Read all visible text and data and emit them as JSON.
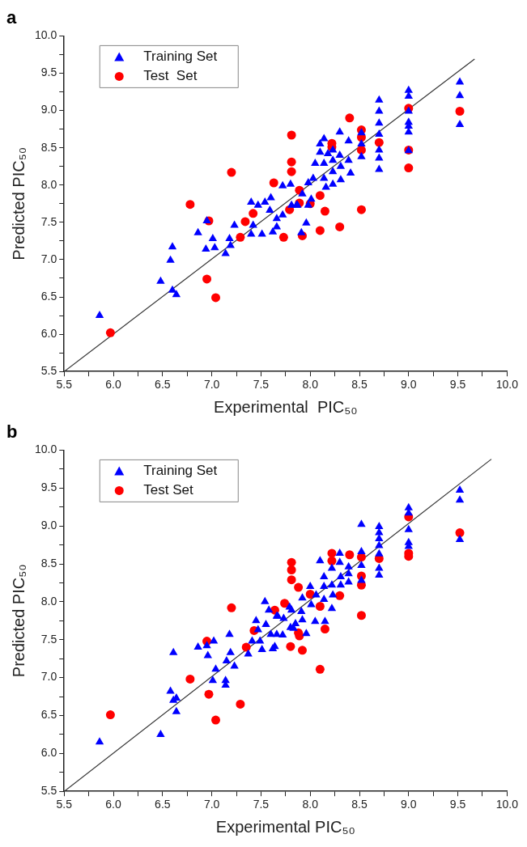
{
  "chart_data": [
    {
      "type": "scatter",
      "title": "a",
      "xlabel": "Experimental  PIC₅₀",
      "ylabel": "Predicted PIC₅₀",
      "legend": "top left",
      "grid": false,
      "xlim": [
        5.5,
        10.0
      ],
      "ylim": [
        5.5,
        10.0
      ],
      "xticks": [
        {
          "value": 5.5,
          "label": "5.5"
        },
        {
          "value": 5.75,
          "label": null
        },
        {
          "value": 6,
          "label": "6.0"
        },
        {
          "value": 6.25,
          "label": null
        },
        {
          "value": 6.5,
          "label": "6.5"
        },
        {
          "value": 6.75,
          "label": null
        },
        {
          "value": 7,
          "label": "7.0"
        },
        {
          "value": 7.25,
          "label": null
        },
        {
          "value": 7.5,
          "label": "7.5"
        },
        {
          "value": 7.75,
          "label": null
        },
        {
          "value": 8,
          "label": "8.0"
        },
        {
          "value": 8.25,
          "label": null
        },
        {
          "value": 8.5,
          "label": "8.5"
        },
        {
          "value": 8.75,
          "label": null
        },
        {
          "value": 9,
          "label": "9.0"
        },
        {
          "value": 9.25,
          "label": null
        },
        {
          "value": 9.5,
          "label": "9.5"
        },
        {
          "value": 9.75,
          "label": null
        },
        {
          "value": 10,
          "label": "10.0"
        }
      ],
      "yticks": [
        {
          "value": 5.5,
          "label": "5.5"
        },
        {
          "value": 5.75,
          "label": null
        },
        {
          "value": 6,
          "label": "6.0"
        },
        {
          "value": 6.25,
          "label": null
        },
        {
          "value": 6.5,
          "label": "6.5"
        },
        {
          "value": 6.75,
          "label": null
        },
        {
          "value": 7,
          "label": "7.0"
        },
        {
          "value": 7.25,
          "label": null
        },
        {
          "value": 7.5,
          "label": "7.5"
        },
        {
          "value": 7.75,
          "label": null
        },
        {
          "value": 8,
          "label": "8.0"
        },
        {
          "value": 8.25,
          "label": null
        },
        {
          "value": 8.5,
          "label": "8.5"
        },
        {
          "value": 8.75,
          "label": null
        },
        {
          "value": 9,
          "label": "9.0"
        },
        {
          "value": 9.25,
          "label": null
        },
        {
          "value": 9.5,
          "label": "9.5"
        },
        {
          "value": 9.75,
          "label": null
        },
        {
          "value": 10,
          "label": "10.0"
        }
      ],
      "series": [
        {
          "type": "line",
          "color": "#333333",
          "marker": "none",
          "x": [
            5.5,
            9.67
          ],
          "values": [
            5.5,
            9.69
          ]
        },
        {
          "name": "Training Set",
          "marker": "triangle",
          "color": "#0000ff",
          "x": [
            5.86,
            6.48,
            6.58,
            6.6,
            6.6,
            6.64,
            6.86,
            6.95,
            6.94,
            7.01,
            7.03,
            7.14,
            7.18,
            7.19,
            7.23,
            7.4,
            7.42,
            7.4,
            7.47,
            7.51,
            7.54,
            7.6,
            7.59,
            7.62,
            7.66,
            7.66,
            7.72,
            7.72,
            7.8,
            7.81,
            7.86,
            7.87,
            7.91,
            7.96,
            7.92,
            7.98,
            7.98,
            8.01,
            8.03,
            8.05,
            8.1,
            8.14,
            8.1,
            8.14,
            8.14,
            8.16,
            8.18,
            8.23,
            8.23,
            8.23,
            8.23,
            8.3,
            8.3,
            8.31,
            8.31,
            8.39,
            8.39,
            8.41,
            8.52,
            8.52,
            8.52,
            8.7,
            8.7,
            8.7,
            8.7,
            8.7,
            8.7,
            8.7,
            9.0,
            9.0,
            9.0,
            9.0,
            9.0,
            9.0,
            9.0,
            9.52,
            9.52,
            9.52
          ],
          "values": [
            6.25,
            6.71,
            6.99,
            7.17,
            6.59,
            6.53,
            7.36,
            7.52,
            7.14,
            7.28,
            7.16,
            7.08,
            7.28,
            7.19,
            7.46,
            7.34,
            7.46,
            7.77,
            7.73,
            7.34,
            7.77,
            7.83,
            7.66,
            7.37,
            7.55,
            7.44,
            7.6,
            7.99,
            8.01,
            7.73,
            7.73,
            7.73,
            7.36,
            7.49,
            7.88,
            8.03,
            7.73,
            7.81,
            8.09,
            8.29,
            8.55,
            8.62,
            8.44,
            8.29,
            8.09,
            7.97,
            8.42,
            8.47,
            8.33,
            8.18,
            8.01,
            8.71,
            8.4,
            8.25,
            8.07,
            8.59,
            8.33,
            8.16,
            8.7,
            8.55,
            8.38,
            9.14,
            8.99,
            8.83,
            8.68,
            8.47,
            8.36,
            8.21,
            9.27,
            9.19,
            8.99,
            8.84,
            8.79,
            8.71,
            8.46,
            9.38,
            9.2,
            8.81
          ]
        },
        {
          "name": "Test  Set",
          "marker": "circle",
          "color": "#ff0000",
          "x": [
            5.97,
            6.78,
            6.97,
            6.95,
            7.04,
            7.2,
            7.29,
            7.34,
            7.42,
            7.63,
            7.73,
            7.81,
            7.81,
            7.81,
            7.79,
            7.89,
            7.89,
            7.92,
            8.0,
            8.1,
            8.15,
            8.1,
            8.3,
            8.22,
            8.22,
            8.4,
            8.52,
            8.52,
            8.52,
            8.52,
            8.7,
            9.0,
            9.0,
            9.0,
            9.52
          ],
          "values": [
            6.02,
            7.74,
            7.52,
            6.74,
            6.49,
            8.17,
            7.3,
            7.51,
            7.62,
            8.03,
            7.3,
            8.67,
            8.31,
            8.18,
            7.67,
            7.93,
            7.76,
            7.32,
            7.75,
            7.86,
            7.65,
            7.39,
            7.44,
            8.56,
            8.51,
            8.9,
            8.74,
            8.64,
            8.47,
            7.67,
            8.57,
            9.03,
            8.47,
            8.23,
            8.99
          ]
        }
      ]
    },
    {
      "type": "scatter",
      "title": "b",
      "xlabel": "Experimental PIC₅₀",
      "ylabel": "Predicted PIC₅₀",
      "legend": "top left",
      "grid": false,
      "xlim": [
        5.5,
        10.0
      ],
      "ylim": [
        5.5,
        10.0
      ],
      "xticks": [
        {
          "value": 5.5,
          "label": "5.5"
        },
        {
          "value": 5.75,
          "label": null
        },
        {
          "value": 6,
          "label": "6.0"
        },
        {
          "value": 6.25,
          "label": null
        },
        {
          "value": 6.5,
          "label": "6.5"
        },
        {
          "value": 6.75,
          "label": null
        },
        {
          "value": 7,
          "label": "7.0"
        },
        {
          "value": 7.25,
          "label": null
        },
        {
          "value": 7.5,
          "label": "7.5"
        },
        {
          "value": 7.75,
          "label": null
        },
        {
          "value": 8,
          "label": "8.0"
        },
        {
          "value": 8.25,
          "label": null
        },
        {
          "value": 8.5,
          "label": "8.5"
        },
        {
          "value": 8.75,
          "label": null
        },
        {
          "value": 9,
          "label": "9.0"
        },
        {
          "value": 9.25,
          "label": null
        },
        {
          "value": 9.5,
          "label": "9.5"
        },
        {
          "value": 9.75,
          "label": null
        },
        {
          "value": 10,
          "label": "10.0"
        }
      ],
      "yticks": [
        {
          "value": 5.5,
          "label": "5.5"
        },
        {
          "value": 5.75,
          "label": null
        },
        {
          "value": 6,
          "label": "6.0"
        },
        {
          "value": 6.25,
          "label": null
        },
        {
          "value": 6.5,
          "label": "6.5"
        },
        {
          "value": 6.75,
          "label": null
        },
        {
          "value": 7,
          "label": "7.0"
        },
        {
          "value": 7.25,
          "label": null
        },
        {
          "value": 7.5,
          "label": "7.5"
        },
        {
          "value": 7.75,
          "label": null
        },
        {
          "value": 8,
          "label": "8.0"
        },
        {
          "value": 8.25,
          "label": null
        },
        {
          "value": 8.5,
          "label": "8.5"
        },
        {
          "value": 8.75,
          "label": null
        },
        {
          "value": 9,
          "label": "9.0"
        },
        {
          "value": 9.25,
          "label": null
        },
        {
          "value": 9.5,
          "label": "9.5"
        },
        {
          "value": 9.75,
          "label": null
        },
        {
          "value": 10,
          "label": "10.0"
        }
      ],
      "series": [
        {
          "type": "line",
          "color": "#333333",
          "marker": "none",
          "x": [
            5.5,
            9.84
          ],
          "values": [
            5.5,
            9.88
          ]
        },
        {
          "name": "Training Set",
          "marker": "triangle",
          "color": "#0000ff",
          "x": [
            5.86,
            6.48,
            6.61,
            6.58,
            6.61,
            6.64,
            6.64,
            6.86,
            6.95,
            6.96,
            7.02,
            7.01,
            7.04,
            7.14,
            7.14,
            7.15,
            7.18,
            7.19,
            7.23,
            7.37,
            7.41,
            7.45,
            7.47,
            7.49,
            7.51,
            7.54,
            7.55,
            7.58,
            7.6,
            7.62,
            7.64,
            7.66,
            7.66,
            7.72,
            7.73,
            7.79,
            7.8,
            7.85,
            7.67,
            7.81,
            7.83,
            7.91,
            7.92,
            7.96,
            7.92,
            8.0,
            8.01,
            8.05,
            8.06,
            8.1,
            8.14,
            8.14,
            8.14,
            8.15,
            8.22,
            8.22,
            8.23,
            8.22,
            8.3,
            8.3,
            8.31,
            8.31,
            8.39,
            8.39,
            8.39,
            8.52,
            8.52,
            8.52,
            8.52,
            8.7,
            8.7,
            8.7,
            8.7,
            8.7,
            8.7,
            8.7,
            9.0,
            9.0,
            9.0,
            9.0,
            9.0,
            9.52,
            9.52,
            9.52
          ],
          "values": [
            6.15,
            6.25,
            7.33,
            6.82,
            6.7,
            6.55,
            6.73,
            7.4,
            7.42,
            7.29,
            7.48,
            6.96,
            7.11,
            6.96,
            6.9,
            7.22,
            7.57,
            7.33,
            7.15,
            7.31,
            7.48,
            7.75,
            7.63,
            7.48,
            7.37,
            8.0,
            7.7,
            7.89,
            7.57,
            7.38,
            7.41,
            7.81,
            7.57,
            7.56,
            7.78,
            7.93,
            7.66,
            7.71,
            7.81,
            7.89,
            7.65,
            7.87,
            7.76,
            7.58,
            8.05,
            8.2,
            7.96,
            7.74,
            8.09,
            8.54,
            8.33,
            8.2,
            8.03,
            7.74,
            8.44,
            8.22,
            8.09,
            7.91,
            8.64,
            8.52,
            8.33,
            8.22,
            8.46,
            8.37,
            8.26,
            9.02,
            8.66,
            8.48,
            8.28,
            8.99,
            8.91,
            8.83,
            8.74,
            8.63,
            8.44,
            8.35,
            9.24,
            9.17,
            8.95,
            8.78,
            8.73,
            9.47,
            9.34,
            8.82
          ]
        },
        {
          "name": "Test Set",
          "marker": "circle",
          "color": "#ff0000",
          "x": [
            5.97,
            6.78,
            6.95,
            6.97,
            7.04,
            7.2,
            7.29,
            7.35,
            7.43,
            7.64,
            7.74,
            7.8,
            7.81,
            7.81,
            7.81,
            7.88,
            7.88,
            7.89,
            7.92,
            8.0,
            8.1,
            8.15,
            8.1,
            8.22,
            8.22,
            8.3,
            8.4,
            8.52,
            8.52,
            8.52,
            8.52,
            8.7,
            9.0,
            9.0,
            9.0,
            9.52
          ],
          "values": [
            6.51,
            6.98,
            7.48,
            6.78,
            6.44,
            7.92,
            6.65,
            7.4,
            7.62,
            7.89,
            7.98,
            7.41,
            8.52,
            8.42,
            8.29,
            8.19,
            7.59,
            7.55,
            7.36,
            8.1,
            7.94,
            7.64,
            7.11,
            8.64,
            8.54,
            8.08,
            8.62,
            8.59,
            8.34,
            8.22,
            7.82,
            8.57,
            9.12,
            8.64,
            8.6,
            8.91
          ]
        }
      ]
    }
  ]
}
